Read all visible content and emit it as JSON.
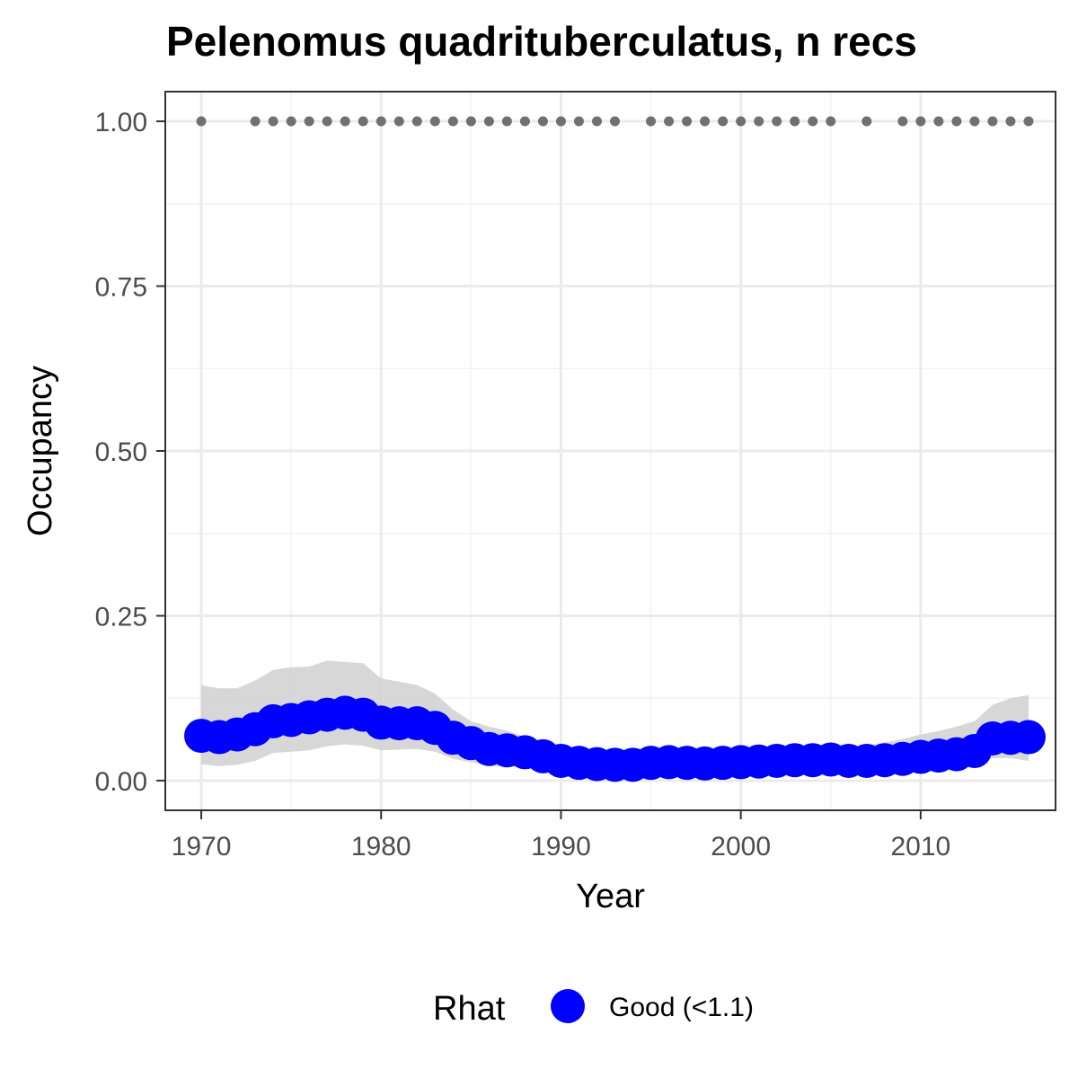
{
  "chart_data": {
    "type": "line",
    "title": "Pelenomus quadrituberculatus, n recs",
    "xlabel": "Year",
    "ylabel": "Occupancy",
    "xlim": [
      1968,
      2017.5
    ],
    "ylim": [
      -0.045,
      1.045
    ],
    "x_ticks": [
      1970,
      1980,
      1990,
      2000,
      2010
    ],
    "x_tick_labels": [
      "1970",
      "1980",
      "1990",
      "2000",
      "2010"
    ],
    "y_ticks": [
      0,
      0.25,
      0.5,
      0.75,
      1.0
    ],
    "y_tick_labels": [
      "0.00",
      "0.25",
      "0.50",
      "0.75",
      "1.00"
    ],
    "grid": true,
    "legend_position": "bottom",
    "legend": {
      "title": "Rhat",
      "entries": [
        {
          "label": "Good (<1.1)",
          "color": "#0000ff"
        }
      ]
    },
    "colors": {
      "occupancy": "#0000ff",
      "ribbon": "#d3d3d3",
      "records": "#707070"
    },
    "series": [
      {
        "key": "occupancy",
        "x": [
          1970,
          1971,
          1972,
          1973,
          1974,
          1975,
          1976,
          1977,
          1978,
          1979,
          1980,
          1981,
          1982,
          1983,
          1984,
          1985,
          1986,
          1987,
          1988,
          1989,
          1990,
          1991,
          1992,
          1993,
          1994,
          1995,
          1996,
          1997,
          1998,
          1999,
          2000,
          2001,
          2002,
          2003,
          2004,
          2005,
          2006,
          2007,
          2008,
          2009,
          2010,
          2011,
          2012,
          2013,
          2014,
          2015,
          2016
        ],
        "y": [
          0.068,
          0.066,
          0.07,
          0.078,
          0.09,
          0.092,
          0.096,
          0.1,
          0.103,
          0.1,
          0.088,
          0.087,
          0.087,
          0.08,
          0.065,
          0.057,
          0.048,
          0.046,
          0.043,
          0.037,
          0.03,
          0.027,
          0.025,
          0.024,
          0.024,
          0.027,
          0.028,
          0.027,
          0.026,
          0.027,
          0.028,
          0.029,
          0.03,
          0.031,
          0.031,
          0.032,
          0.03,
          0.03,
          0.031,
          0.033,
          0.036,
          0.038,
          0.04,
          0.045,
          0.064,
          0.065,
          0.066
        ]
      },
      {
        "key": "ci_upper",
        "x": [
          1970,
          1971,
          1972,
          1973,
          1974,
          1975,
          1976,
          1977,
          1978,
          1979,
          1980,
          1981,
          1982,
          1983,
          1984,
          1985,
          1986,
          1987,
          1988,
          1989,
          1990,
          1991,
          1992,
          1993,
          1994,
          1995,
          1996,
          1997,
          1998,
          1999,
          2000,
          2001,
          2002,
          2003,
          2004,
          2005,
          2006,
          2007,
          2008,
          2009,
          2010,
          2011,
          2012,
          2013,
          2014,
          2015,
          2016
        ],
        "y": [
          0.145,
          0.14,
          0.14,
          0.152,
          0.168,
          0.172,
          0.173,
          0.182,
          0.18,
          0.178,
          0.155,
          0.15,
          0.145,
          0.132,
          0.108,
          0.09,
          0.082,
          0.076,
          0.066,
          0.055,
          0.045,
          0.04,
          0.038,
          0.036,
          0.036,
          0.04,
          0.042,
          0.04,
          0.04,
          0.042,
          0.045,
          0.047,
          0.048,
          0.05,
          0.05,
          0.052,
          0.05,
          0.053,
          0.058,
          0.063,
          0.07,
          0.075,
          0.082,
          0.09,
          0.115,
          0.125,
          0.13
        ]
      },
      {
        "key": "ci_lower",
        "x": [
          1970,
          1971,
          1972,
          1973,
          1974,
          1975,
          1976,
          1977,
          1978,
          1979,
          1980,
          1981,
          1982,
          1983,
          1984,
          1985,
          1986,
          1987,
          1988,
          1989,
          1990,
          1991,
          1992,
          1993,
          1994,
          1995,
          1996,
          1997,
          1998,
          1999,
          2000,
          2001,
          2002,
          2003,
          2004,
          2005,
          2006,
          2007,
          2008,
          2009,
          2010,
          2011,
          2012,
          2013,
          2014,
          2015,
          2016
        ],
        "y": [
          0.025,
          0.022,
          0.024,
          0.03,
          0.042,
          0.044,
          0.046,
          0.052,
          0.055,
          0.053,
          0.046,
          0.047,
          0.048,
          0.044,
          0.033,
          0.028,
          0.022,
          0.021,
          0.02,
          0.017,
          0.015,
          0.013,
          0.012,
          0.012,
          0.012,
          0.014,
          0.014,
          0.013,
          0.013,
          0.013,
          0.014,
          0.015,
          0.015,
          0.016,
          0.016,
          0.016,
          0.015,
          0.015,
          0.015,
          0.016,
          0.018,
          0.019,
          0.02,
          0.022,
          0.034,
          0.034,
          0.03
        ]
      },
      {
        "key": "records",
        "x": [
          1970,
          1973,
          1974,
          1975,
          1976,
          1977,
          1978,
          1979,
          1980,
          1981,
          1982,
          1983,
          1984,
          1985,
          1986,
          1987,
          1988,
          1989,
          1990,
          1991,
          1992,
          1993,
          1995,
          1996,
          1997,
          1998,
          1999,
          2000,
          2001,
          2002,
          2003,
          2004,
          2005,
          2007,
          2009,
          2010,
          2011,
          2012,
          2013,
          2014,
          2015,
          2016
        ],
        "y": [
          1,
          1,
          1,
          1,
          1,
          1,
          1,
          1,
          1,
          1,
          1,
          1,
          1,
          1,
          1,
          1,
          1,
          1,
          1,
          1,
          1,
          1,
          1,
          1,
          1,
          1,
          1,
          1,
          1,
          1,
          1,
          1,
          1,
          1,
          1,
          1,
          1,
          1,
          1,
          1,
          1,
          1
        ]
      }
    ]
  }
}
